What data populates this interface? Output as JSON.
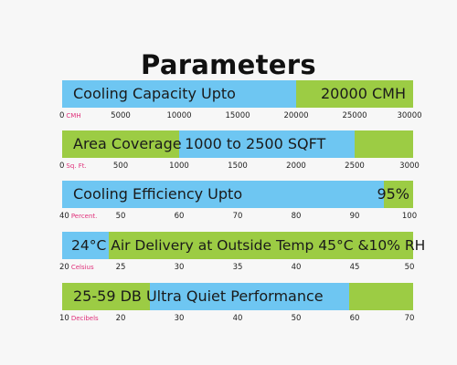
{
  "title": "Parameters",
  "colors": {
    "blue": "#6ec6f2",
    "green": "#9ccc44",
    "unit_pink": "#e0307a"
  },
  "chart_data": [
    {
      "type": "bar",
      "label": "Cooling Capacity Upto",
      "value_label": "20000 CMH",
      "axis_min": 0,
      "axis_max": 30000,
      "ticks": [
        "0",
        "5000",
        "10000",
        "15000",
        "20000",
        "25000",
        "30000"
      ],
      "unit": "CMH",
      "segments": [
        {
          "from": 0,
          "to": 20000,
          "color": "blue"
        },
        {
          "from": 20000,
          "to": 30000,
          "color": "green"
        }
      ]
    },
    {
      "type": "bar",
      "label": "Area Coverage",
      "value_label": "1000 to 2500 SQFT",
      "axis_min": 0,
      "axis_max": 3000,
      "ticks": [
        "0",
        "500",
        "1000",
        "1500",
        "2000",
        "2500",
        "3000"
      ],
      "unit": "Sq. Ft.",
      "segments": [
        {
          "from": 0,
          "to": 1000,
          "color": "green"
        },
        {
          "from": 1000,
          "to": 2500,
          "color": "blue"
        },
        {
          "from": 2500,
          "to": 3000,
          "color": "green"
        }
      ]
    },
    {
      "type": "bar",
      "label": "Cooling Efficiency Upto",
      "value_label": "95%",
      "axis_min": 40,
      "axis_max": 100,
      "ticks": [
        "40",
        "50",
        "60",
        "70",
        "80",
        "90",
        "100"
      ],
      "unit": "Percent.",
      "segments": [
        {
          "from": 40,
          "to": 95,
          "color": "blue"
        },
        {
          "from": 95,
          "to": 100,
          "color": "green"
        }
      ]
    },
    {
      "type": "bar",
      "label": "24°C Air Delivery at Outside Temp 45°C &10% RH",
      "value_label": "",
      "axis_min": 20,
      "axis_max": 50,
      "ticks": [
        "20",
        "25",
        "30",
        "35",
        "40",
        "45",
        "50"
      ],
      "unit": "Celsius",
      "segments": [
        {
          "from": 20,
          "to": 24,
          "color": "blue"
        },
        {
          "from": 24,
          "to": 50,
          "color": "green"
        }
      ]
    },
    {
      "type": "bar",
      "label": "25-59 DB Ultra Quiet Performance",
      "value_label": "",
      "axis_min": 10,
      "axis_max": 70,
      "ticks": [
        "10",
        "20",
        "30",
        "40",
        "50",
        "60",
        "70"
      ],
      "unit": "Decibels",
      "segments": [
        {
          "from": 10,
          "to": 25,
          "color": "green"
        },
        {
          "from": 25,
          "to": 59,
          "color": "blue"
        },
        {
          "from": 59,
          "to": 70,
          "color": "green"
        }
      ]
    }
  ]
}
